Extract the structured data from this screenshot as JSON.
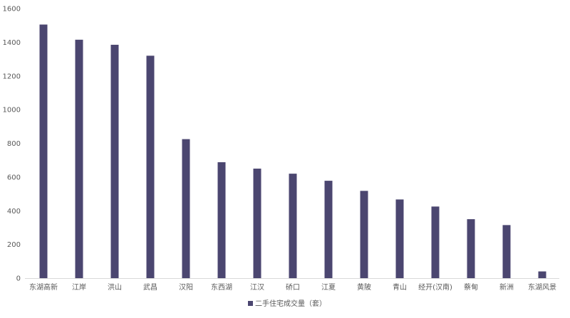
{
  "chart_data": {
    "type": "bar",
    "title": "",
    "xlabel": "",
    "ylabel": "",
    "categories": [
      "东湖高新",
      "江岸",
      "洪山",
      "武昌",
      "汉阳",
      "东西湖",
      "江汉",
      "硚口",
      "江夏",
      "黄陂",
      "青山",
      "经开(汉南)",
      "蔡甸",
      "新洲",
      "东湖风景"
    ],
    "series": [
      {
        "name": "二手住宅成交量（套）",
        "values": [
          1505,
          1415,
          1385,
          1320,
          825,
          688,
          650,
          620,
          578,
          518,
          467,
          425,
          350,
          315,
          40
        ],
        "color": "#4B4670"
      }
    ],
    "ylim": [
      0,
      1600
    ],
    "yticks": [
      0,
      200,
      400,
      600,
      800,
      1000,
      1200,
      1400,
      1600
    ],
    "grid": false,
    "legend": "bottom-center"
  }
}
